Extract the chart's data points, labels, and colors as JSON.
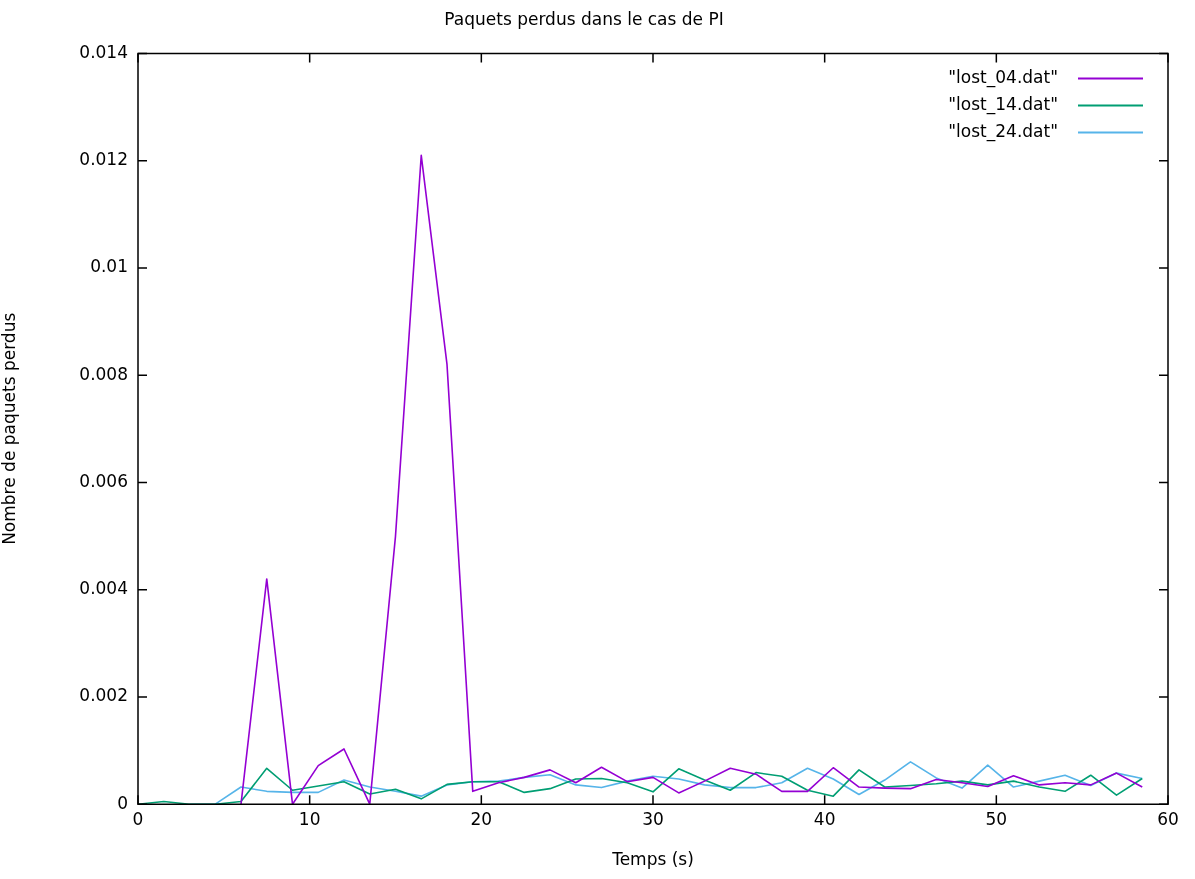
{
  "chart_data": {
    "type": "line",
    "title": "Paquets perdus dans le cas de PI",
    "xlabel": "Temps (s)",
    "ylabel": "Nombre de paquets perdus",
    "x": [
      0,
      1.5,
      3,
      4.5,
      6,
      7.5,
      9,
      10.5,
      12,
      13.5,
      15,
      16.5,
      18,
      19.5,
      21,
      22.5,
      24,
      25.5,
      27,
      28.5,
      30,
      31.5,
      33,
      34.5,
      36,
      37.5,
      39,
      40.5,
      42,
      43.5,
      45,
      46.5,
      48,
      49.5,
      51,
      52.5,
      54,
      55.5,
      57,
      58.5
    ],
    "series": [
      {
        "name": "\"lost_04.dat\"",
        "color": "#9400d3",
        "values": [
          null,
          null,
          null,
          null,
          0,
          0.0042,
          0,
          0.00072,
          0.00103,
          0,
          0.005,
          0.0121,
          0.0082,
          0.00024,
          0.0004,
          0.0005,
          0.00064,
          0.0004,
          0.00069,
          0.00042,
          0.0005,
          0.00021,
          0.00043,
          0.00067,
          0.00056,
          0.00024,
          0.00024,
          0.00068,
          0.00032,
          0.0003,
          0.00029,
          0.00046,
          0.0004,
          0.00033,
          0.00053,
          0.00036,
          0.0004,
          0.00036,
          0.00058,
          0.00032
        ]
      },
      {
        "name": "\"lost_14.dat\"",
        "color": "#009e73",
        "values": [
          0,
          5e-05,
          0,
          0,
          5e-05,
          0.00067,
          0.00026,
          0.00034,
          0.00042,
          0.00019,
          0.00028,
          0.0001,
          0.00037,
          0.00042,
          0.00042,
          0.00022,
          0.00029,
          0.00047,
          0.00048,
          0.0004,
          0.00023,
          0.00066,
          0.00045,
          0.00026,
          0.00059,
          0.00052,
          0.00026,
          0.00015,
          0.00064,
          0.00032,
          0.00035,
          0.00038,
          0.00043,
          0.00036,
          0.00043,
          0.00032,
          0.00024,
          0.00054,
          0.00017,
          0.00048
        ]
      },
      {
        "name": "\"lost_24.dat\"",
        "color": "#56b4e9",
        "values": [
          null,
          null,
          0,
          0,
          0.00032,
          0.00024,
          0.00022,
          0.00022,
          0.00045,
          0.00032,
          0.00024,
          0.00015,
          0.00036,
          0.00042,
          0.00043,
          0.0005,
          0.00055,
          0.00036,
          0.00031,
          0.00043,
          0.00052,
          0.00047,
          0.00036,
          0.00031,
          0.00031,
          0.0004,
          0.00067,
          0.00047,
          0.00018,
          0.00045,
          0.00079,
          0.00049,
          0.0003,
          0.00073,
          0.00032,
          0.00043,
          0.00054,
          0.00035,
          0.00058,
          0.00048
        ]
      }
    ],
    "xlim": [
      0,
      60
    ],
    "xticks": [
      0,
      10,
      20,
      30,
      40,
      50,
      60
    ],
    "ylim": [
      0,
      0.014
    ],
    "yticks": [
      0,
      0.002,
      0.004,
      0.006,
      0.008,
      0.01,
      0.012,
      0.014
    ],
    "grid": false,
    "legend": "top right",
    "marker": "none",
    "line_style": "solid"
  }
}
